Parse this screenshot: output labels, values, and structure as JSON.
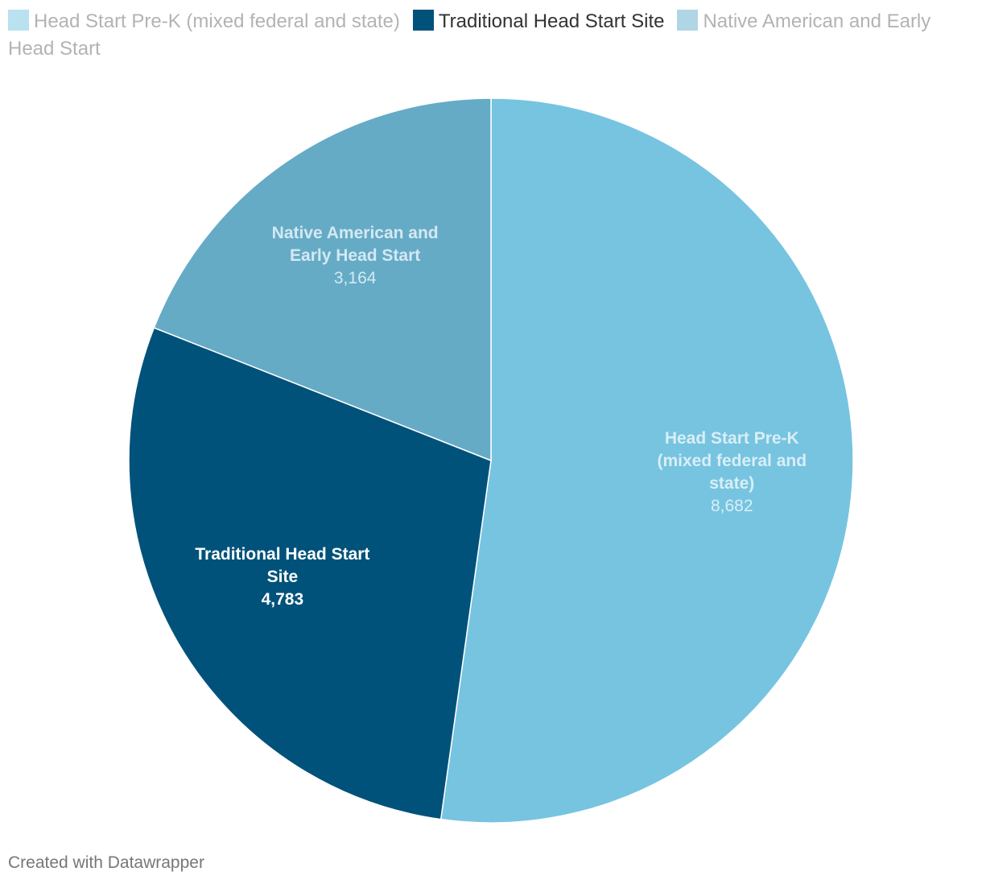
{
  "chart_data": {
    "type": "pie",
    "title": "",
    "legend_position": "top",
    "slices": [
      {
        "name": "Head Start Pre-K (mixed federal and state)",
        "label_lines": [
          "Head Start Pre-K",
          "(mixed federal and",
          "state)"
        ],
        "value": 8682,
        "value_label": "8,682",
        "color": "#76c4e0",
        "legend_color": "#b9e1ef",
        "label_color": "#d9eef6",
        "legend_dim": true
      },
      {
        "name": "Traditional Head Start Site",
        "label_lines": [
          "Traditional Head Start",
          "Site"
        ],
        "value": 4783,
        "value_label": "4,783",
        "color": "#01527a",
        "legend_color": "#01527a",
        "label_color": "#ffffff",
        "legend_dim": false
      },
      {
        "name": "Native American and Early Head Start",
        "label_lines": [
          "Native American and",
          "Early Head Start"
        ],
        "value": 3164,
        "value_label": "3,164",
        "color": "#66abc6",
        "legend_color": "#b0d6e5",
        "label_color": "#d3e9f2",
        "legend_dim": true
      }
    ]
  },
  "footer": {
    "credit": "Created with Datawrapper"
  }
}
